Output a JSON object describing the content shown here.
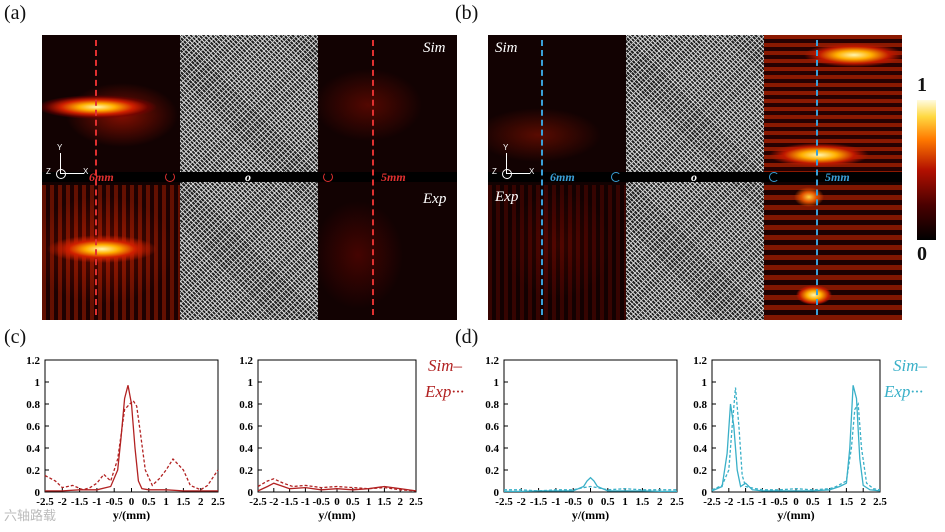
{
  "panel_labels": {
    "a": "(a)",
    "b": "(b)",
    "c": "(c)",
    "d": "(d)"
  },
  "panel_a": {
    "sim_label": "Sim",
    "exp_label": "Exp",
    "dist_left": "6mm",
    "center_label": "o",
    "dist_right": "5mm",
    "axis_y": "Y",
    "axis_z": "Z",
    "axis_x": "X",
    "accent": "#e03030"
  },
  "panel_b": {
    "sim_label": "Sim",
    "exp_label": "Exp",
    "dist_left": "6mm",
    "center_label": "o",
    "dist_right": "5mm",
    "axis_y": "Y",
    "axis_z": "Z",
    "axis_x": "X",
    "accent": "#3aa0d8"
  },
  "colorbar": {
    "max": "1",
    "min": "0"
  },
  "legend_c": {
    "sim": "Sim–",
    "exp": "Exp···",
    "color": "#b22222"
  },
  "legend_d": {
    "sim": "Sim–",
    "exp": "Exp···",
    "color": "#3ab0c8"
  },
  "watermark": "六轴路载",
  "chart_data": [
    {
      "type": "line",
      "panel": "c-left",
      "color": "#b22222",
      "xlabel": "y/(mm)",
      "xlim": [
        -2.5,
        2.5
      ],
      "ylim": [
        0,
        1.2
      ],
      "xticks": [
        "-2.5",
        "-2",
        "-1.5",
        "-1",
        "-0.5",
        "0",
        "0.5",
        "1",
        "1.5",
        "2",
        "2.5"
      ],
      "yticks": [
        "0",
        "0.2",
        "0.4",
        "0.6",
        "0.8",
        "1",
        "1.2"
      ],
      "series": [
        {
          "name": "Sim",
          "dash": false,
          "x": [
            -2.5,
            -2,
            -1.5,
            -1,
            -0.6,
            -0.4,
            -0.3,
            -0.2,
            -0.1,
            0,
            0.1,
            0.2,
            0.3,
            0.5,
            1,
            1.5,
            2,
            2.5
          ],
          "y": [
            0.01,
            0.01,
            0.02,
            0.02,
            0.05,
            0.2,
            0.5,
            0.85,
            0.97,
            0.8,
            0.4,
            0.1,
            0.03,
            0.02,
            0.02,
            0.01,
            0.01,
            0.01
          ]
        },
        {
          "name": "Exp",
          "dash": true,
          "x": [
            -2.5,
            -2.2,
            -2,
            -1.7,
            -1.4,
            -1.2,
            -1,
            -0.8,
            -0.6,
            -0.4,
            -0.2,
            -0.05,
            0.05,
            0.15,
            0.25,
            0.4,
            0.6,
            0.8,
            1.0,
            1.2,
            1.5,
            1.7,
            2,
            2.2,
            2.5
          ],
          "y": [
            0.15,
            0.1,
            0.04,
            0.06,
            0.02,
            0.04,
            0.08,
            0.16,
            0.1,
            0.3,
            0.75,
            0.8,
            0.83,
            0.78,
            0.55,
            0.2,
            0.06,
            0.12,
            0.2,
            0.3,
            0.2,
            0.06,
            0.02,
            0.06,
            0.2
          ]
        }
      ]
    },
    {
      "type": "line",
      "panel": "c-right",
      "color": "#b22222",
      "xlabel": "y/(mm)",
      "xlim": [
        -2.5,
        2.5
      ],
      "ylim": [
        0,
        1.2
      ],
      "xticks": [
        "-2.5",
        "-2",
        "-1.5",
        "-1",
        "-0.5",
        "0",
        "0.5",
        "1",
        "1.5",
        "2",
        "2.5"
      ],
      "yticks": [
        "0",
        "0.2",
        "0.4",
        "0.6",
        "0.8",
        "1",
        "1.2"
      ],
      "series": [
        {
          "name": "Sim",
          "dash": false,
          "x": [
            -2.5,
            -2.2,
            -2,
            -1.7,
            -1.5,
            -1,
            -0.5,
            0,
            0.5,
            1,
            1.5,
            2,
            2.5
          ],
          "y": [
            0.01,
            0.05,
            0.08,
            0.05,
            0.03,
            0.04,
            0.02,
            0.03,
            0.02,
            0.03,
            0.05,
            0.03,
            0.01
          ]
        },
        {
          "name": "Exp",
          "dash": true,
          "x": [
            -2.5,
            -2.2,
            -2,
            -1.7,
            -1.4,
            -1,
            -0.5,
            0,
            0.5,
            1,
            1.5,
            2,
            2.5
          ],
          "y": [
            0.05,
            0.1,
            0.12,
            0.08,
            0.05,
            0.06,
            0.04,
            0.05,
            0.04,
            0.03,
            0.04,
            0.02,
            0.01
          ]
        }
      ]
    },
    {
      "type": "line",
      "panel": "d-left",
      "color": "#3ab0c8",
      "xlabel": "y/(mm)",
      "xlim": [
        -2.5,
        2.5
      ],
      "ylim": [
        0,
        1.2
      ],
      "xticks": [
        "-2.5",
        "-2",
        "-1.5",
        "-1",
        "-0.5",
        "0",
        "0.5",
        "1",
        "1.5",
        "2",
        "2.5"
      ],
      "yticks": [
        "0",
        "0.2",
        "0.4",
        "0.6",
        "0.8",
        "1",
        "1.2"
      ],
      "series": [
        {
          "name": "Sim",
          "dash": false,
          "x": [
            -2.5,
            -2,
            -1.5,
            -1,
            -0.5,
            -0.2,
            -0.1,
            0,
            0.1,
            0.2,
            0.5,
            1,
            1.5,
            2,
            2.5
          ],
          "y": [
            0.005,
            0.005,
            0.01,
            0.01,
            0.01,
            0.05,
            0.1,
            0.13,
            0.1,
            0.05,
            0.01,
            0.01,
            0.01,
            0.005,
            0.005
          ]
        },
        {
          "name": "Exp",
          "dash": true,
          "x": [
            -2.5,
            -2,
            -1.5,
            -1,
            -0.5,
            -0.2,
            0,
            0.2,
            0.5,
            1,
            1.5,
            2,
            2.5
          ],
          "y": [
            0.02,
            0.02,
            0.01,
            0.02,
            0.02,
            0.04,
            0.05,
            0.04,
            0.02,
            0.03,
            0.02,
            0.02,
            0.02
          ]
        }
      ]
    },
    {
      "type": "line",
      "panel": "d-right",
      "color": "#3ab0c8",
      "xlabel": "y/(mm)",
      "xlim": [
        -2.5,
        2.5
      ],
      "ylim": [
        0,
        1.2
      ],
      "xticks": [
        "-2.5",
        "-2",
        "-1.5",
        "-1",
        "-0.5",
        "0",
        "0.5",
        "1",
        "1.5",
        "2",
        "2.5"
      ],
      "yticks": [
        "0",
        "0.2",
        "0.4",
        "0.6",
        "0.8",
        "1",
        "1.2"
      ],
      "series": [
        {
          "name": "Sim",
          "dash": false,
          "x": [
            -2.5,
            -2.2,
            -2.05,
            -1.95,
            -1.85,
            -1.75,
            -1.65,
            -1.5,
            -1.3,
            -1,
            -0.5,
            0,
            0.5,
            1,
            1.3,
            1.5,
            1.6,
            1.7,
            1.8,
            1.9,
            2.0,
            2.2,
            2.5
          ],
          "y": [
            0.01,
            0.05,
            0.35,
            0.8,
            0.6,
            0.2,
            0.05,
            0.08,
            0.02,
            0.01,
            0.01,
            0.01,
            0.01,
            0.02,
            0.05,
            0.08,
            0.4,
            0.97,
            0.85,
            0.3,
            0.06,
            0.02,
            0.01
          ]
        },
        {
          "name": "Exp",
          "dash": true,
          "x": [
            -2.5,
            -2.2,
            -2.0,
            -1.9,
            -1.8,
            -1.7,
            -1.6,
            -1.5,
            -1.2,
            -1,
            -0.5,
            0,
            0.5,
            1,
            1.2,
            1.5,
            1.65,
            1.75,
            1.85,
            1.95,
            2.1,
            2.3,
            2.5
          ],
          "y": [
            0.02,
            0.06,
            0.2,
            0.6,
            0.95,
            0.6,
            0.15,
            0.05,
            0.03,
            0.02,
            0.02,
            0.03,
            0.02,
            0.03,
            0.05,
            0.1,
            0.4,
            0.75,
            0.8,
            0.4,
            0.08,
            0.03,
            0.02
          ]
        }
      ]
    }
  ]
}
